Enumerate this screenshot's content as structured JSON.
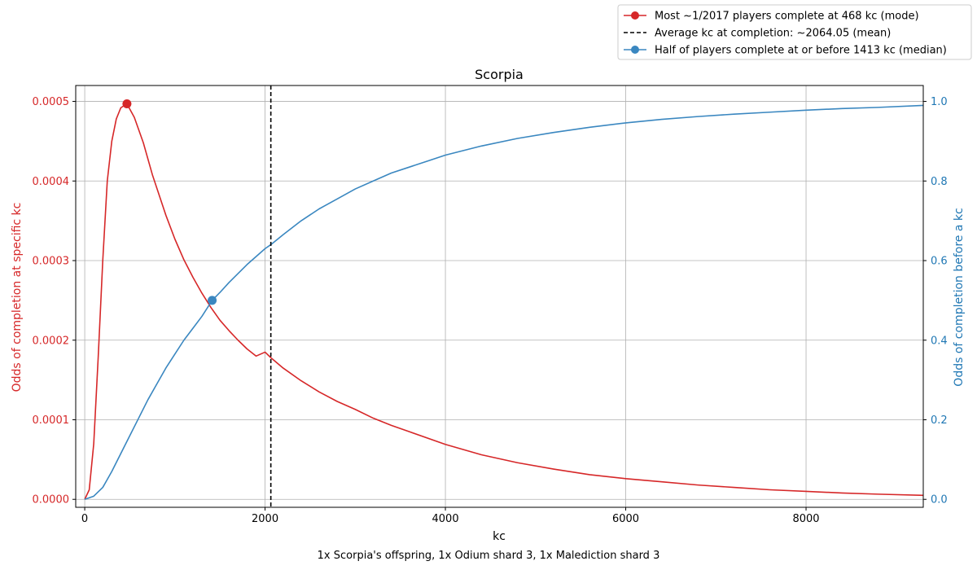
{
  "chart_data": {
    "type": "line",
    "title": "Scorpia",
    "xlabel": "kc",
    "ylabel_left": "Odds of completion at specific kc",
    "ylabel_right": "Odds of completion before a kc",
    "footer": "1x Scorpia's offspring, 1x Odium shard 3, 1x Malediction shard 3",
    "xlim": [
      -100,
      9300
    ],
    "ylim_left": [
      -1e-05,
      0.00052
    ],
    "ylim_right": [
      -0.02,
      1.04
    ],
    "xticks": [
      0,
      2000,
      4000,
      6000,
      8000
    ],
    "xtick_labels": [
      "0",
      "2000",
      "4000",
      "6000",
      "8000"
    ],
    "yticks_left": [
      0,
      0.0001,
      0.0002,
      0.0003,
      0.0004,
      0.0005
    ],
    "ytick_labels_left": [
      "0.0000",
      "0.0001",
      "0.0002",
      "0.0003",
      "0.0004",
      "0.0005"
    ],
    "yticks_right": [
      0,
      0.2,
      0.4,
      0.6,
      0.8,
      1.0
    ],
    "ytick_labels_right": [
      "0.0",
      "0.2",
      "0.4",
      "0.6",
      "0.8",
      "1.0"
    ],
    "grid": true,
    "legend_position": "top-right",
    "left_axis_color": "#d62728",
    "right_axis_color": "#1f77b4",
    "series": [
      {
        "axis": "left",
        "color": "#d62728",
        "x": [
          0,
          50,
          100,
          150,
          200,
          250,
          300,
          350,
          400,
          468,
          550,
          650,
          750,
          900,
          1000,
          1100,
          1200,
          1300,
          1400,
          1500,
          1600,
          1700,
          1800,
          1900,
          2000,
          2064,
          2200,
          2400,
          2600,
          2800,
          3000,
          3200,
          3400,
          3600,
          4000,
          4400,
          4800,
          5200,
          5600,
          6000,
          6400,
          6800,
          7200,
          7600,
          8000,
          8400,
          8800,
          9300
        ],
        "y": [
          0,
          1.2e-05,
          7e-05,
          0.00018,
          0.0003,
          0.0004,
          0.00045,
          0.000478,
          0.000492,
          0.000497,
          0.00048,
          0.000448,
          0.000408,
          0.000357,
          0.000327,
          0.000301,
          0.000279,
          0.000259,
          0.000241,
          0.000225,
          0.000212,
          0.0002,
          0.000189,
          0.00018,
          0.000185,
          0.000178,
          0.000165,
          0.000149,
          0.000135,
          0.000123,
          0.000113,
          0.000102,
          9.3e-05,
          8.5e-05,
          6.9e-05,
          5.6e-05,
          4.6e-05,
          3.8e-05,
          3.1e-05,
          2.6e-05,
          2.2e-05,
          1.8e-05,
          1.5e-05,
          1.2e-05,
          1e-05,
          8e-06,
          6.5e-06,
          5e-06
        ]
      },
      {
        "axis": "right",
        "color": "#3a87c0",
        "x": [
          0,
          100,
          200,
          300,
          400,
          500,
          600,
          700,
          800,
          900,
          1000,
          1100,
          1200,
          1300,
          1413,
          1500,
          1600,
          1800,
          2000,
          2064,
          2200,
          2400,
          2600,
          2800,
          3000,
          3200,
          3400,
          3600,
          3800,
          4000,
          4400,
          4800,
          5200,
          5600,
          6000,
          6400,
          6800,
          7200,
          7600,
          8000,
          8400,
          8800,
          9300
        ],
        "y": [
          0,
          0.008,
          0.03,
          0.07,
          0.115,
          0.16,
          0.205,
          0.25,
          0.29,
          0.33,
          0.365,
          0.4,
          0.43,
          0.46,
          0.5,
          0.52,
          0.545,
          0.59,
          0.63,
          0.64,
          0.665,
          0.7,
          0.73,
          0.755,
          0.78,
          0.8,
          0.82,
          0.835,
          0.85,
          0.865,
          0.888,
          0.907,
          0.922,
          0.935,
          0.946,
          0.955,
          0.962,
          0.968,
          0.973,
          0.978,
          0.982,
          0.985,
          0.99
        ]
      }
    ],
    "markers": {
      "mode": {
        "x": 468,
        "y": 0.000497,
        "axis": "left",
        "color": "#d62728"
      },
      "median": {
        "x": 1413,
        "y": 0.5,
        "axis": "right",
        "color": "#3a87c0"
      },
      "mean": {
        "x": 2064.05
      }
    },
    "legend": [
      {
        "label": "Most ~1/2017 players complete at 468 kc (mode)",
        "style": "line-dot",
        "color": "#d62728"
      },
      {
        "label": "Average kc at completion: ~2064.05 (mean)",
        "style": "dashed",
        "color": "#000000"
      },
      {
        "label": "Half of players complete at or before 1413 kc (median)",
        "style": "line-dot",
        "color": "#3a87c0"
      }
    ]
  }
}
